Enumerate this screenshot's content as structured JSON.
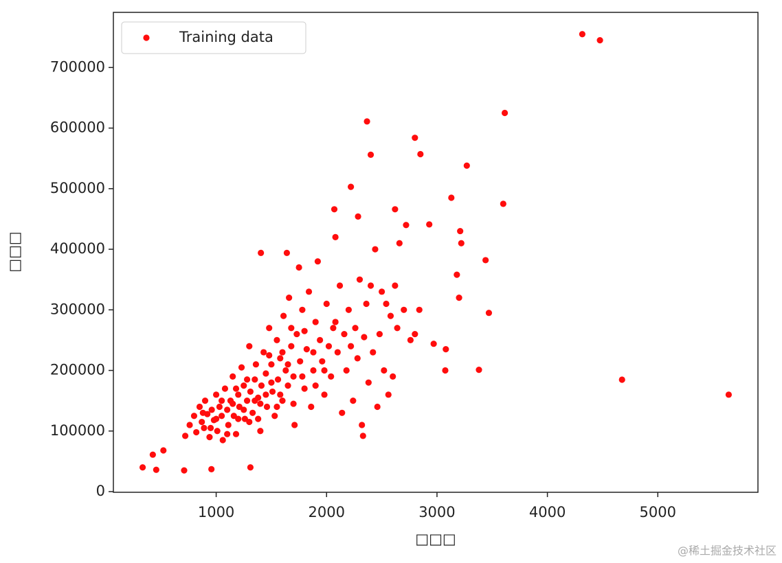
{
  "chart_data": {
    "type": "scatter",
    "xlabel": "□□□",
    "ylabel": "□□□",
    "xlim": [
      69,
      5907
    ],
    "ylim": [
      -1105,
      791005
    ],
    "xticks": [
      1000,
      2000,
      3000,
      4000,
      5000
    ],
    "yticks": [
      0,
      100000,
      200000,
      300000,
      400000,
      500000,
      600000,
      700000
    ],
    "legend": "upper left",
    "series": [
      {
        "name": "Training data",
        "color": "#ff0d0d",
        "x": [
          4316,
          4476,
          4676,
          5642,
          3614,
          3600,
          2366,
          2800,
          2850,
          2400,
          3270,
          3130,
          2220,
          2070,
          2620,
          2285,
          3440,
          3470,
          3180,
          3200,
          3210,
          3220,
          2930,
          3380,
          3075,
          3080,
          2970,
          1405,
          1640,
          457,
          334,
          710,
          957,
          1310,
          426,
          522,
          2330,
          720,
          760,
          800,
          820,
          850,
          870,
          890,
          900,
          920,
          940,
          960,
          980,
          1000,
          1010,
          1030,
          1050,
          1060,
          1080,
          1100,
          1110,
          1130,
          1150,
          1160,
          1180,
          1200,
          1210,
          1230,
          1250,
          1260,
          1280,
          1300,
          1310,
          1330,
          1350,
          1360,
          1380,
          1400,
          1410,
          1430,
          1450,
          1460,
          1480,
          1500,
          1510,
          1530,
          1550,
          1560,
          1580,
          1600,
          1610,
          1630,
          1650,
          1660,
          1680,
          1700,
          1710,
          1730,
          1750,
          1760,
          1780,
          1800,
          1820,
          1840,
          1860,
          1880,
          1900,
          1920,
          1940,
          1960,
          1980,
          2000,
          2020,
          2040,
          2060,
          2080,
          2100,
          2120,
          2140,
          2160,
          2180,
          2200,
          2220,
          2240,
          2260,
          2280,
          2300,
          2320,
          2340,
          2360,
          2380,
          2400,
          2420,
          2440,
          2460,
          2480,
          2500,
          2520,
          2540,
          2560,
          2580,
          2600,
          2620,
          2640,
          2660,
          2700,
          2720,
          2760,
          2800,
          2840,
          1000,
          1100,
          1200,
          1300,
          1400,
          1500,
          1600,
          1700,
          1800,
          1900,
          1150,
          1250,
          1350,
          1450,
          1550,
          1650,
          950,
          1050,
          880,
          1180,
          1280,
          1380,
          1480,
          1580,
          1680,
          1780,
          1880,
          1980,
          2080
        ],
        "values": [
          755000,
          745000,
          184750,
          160000,
          625000,
          475000,
          611000,
          584000,
          557000,
          556000,
          538000,
          485000,
          503000,
          466000,
          466000,
          454000,
          382000,
          295000,
          358000,
          320000,
          430000,
          410000,
          441000,
          201000,
          200000,
          235000,
          244000,
          394000,
          394000,
          36000,
          40000,
          35000,
          37000,
          40000,
          61000,
          68000,
          92000,
          92000,
          110000,
          125000,
          98000,
          140000,
          115000,
          105000,
          150000,
          128000,
          90000,
          135000,
          118000,
          160000,
          100000,
          140000,
          125000,
          85000,
          170000,
          135000,
          110000,
          150000,
          190000,
          125000,
          95000,
          160000,
          140000,
          205000,
          175000,
          120000,
          150000,
          240000,
          165000,
          130000,
          185000,
          210000,
          155000,
          100000,
          175000,
          230000,
          195000,
          140000,
          270000,
          210000,
          165000,
          125000,
          250000,
          185000,
          220000,
          150000,
          290000,
          200000,
          175000,
          320000,
          240000,
          190000,
          110000,
          260000,
          370000,
          215000,
          300000,
          170000,
          235000,
          330000,
          140000,
          200000,
          280000,
          380000,
          250000,
          215000,
          160000,
          310000,
          240000,
          190000,
          270000,
          420000,
          230000,
          340000,
          130000,
          260000,
          200000,
          300000,
          240000,
          150000,
          270000,
          220000,
          350000,
          110000,
          255000,
          310000,
          180000,
          340000,
          230000,
          400000,
          140000,
          260000,
          330000,
          200000,
          310000,
          160000,
          290000,
          190000,
          340000,
          270000,
          410000,
          300000,
          440000,
          250000,
          260000,
          300000,
          120000,
          95000,
          120000,
          115000,
          145000,
          180000,
          230000,
          145000,
          265000,
          175000,
          145000,
          135000,
          150000,
          160000,
          140000,
          210000,
          105000,
          150000,
          130000,
          170000,
          185000,
          120000,
          225000,
          160000,
          270000,
          190000,
          230000,
          200000,
          280000
        ]
      }
    ]
  },
  "watermark": "@稀土掘金技术社区"
}
